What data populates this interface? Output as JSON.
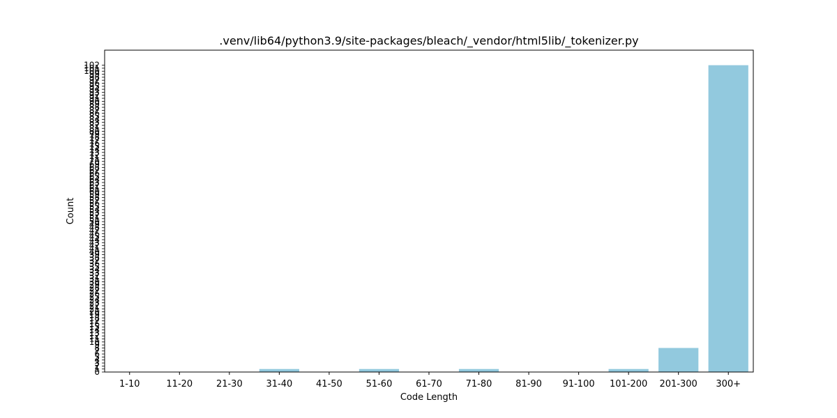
{
  "chart_data": {
    "type": "bar",
    "title": ".venv/lib64/python3.9/site-packages/bleach/_vendor/html5lib/_tokenizer.py",
    "xlabel": "Code Length",
    "ylabel": "Count",
    "categories": [
      "1-10",
      "11-20",
      "21-30",
      "31-40",
      "41-50",
      "51-60",
      "61-70",
      "71-80",
      "81-90",
      "91-100",
      "101-200",
      "201-300",
      "300+"
    ],
    "values": [
      0,
      0,
      0,
      1,
      0,
      1,
      0,
      1,
      0,
      0,
      1,
      8,
      102
    ],
    "ylim": [
      0,
      107
    ],
    "bar_color": "#92c9de",
    "grid": false,
    "legend": "none"
  }
}
